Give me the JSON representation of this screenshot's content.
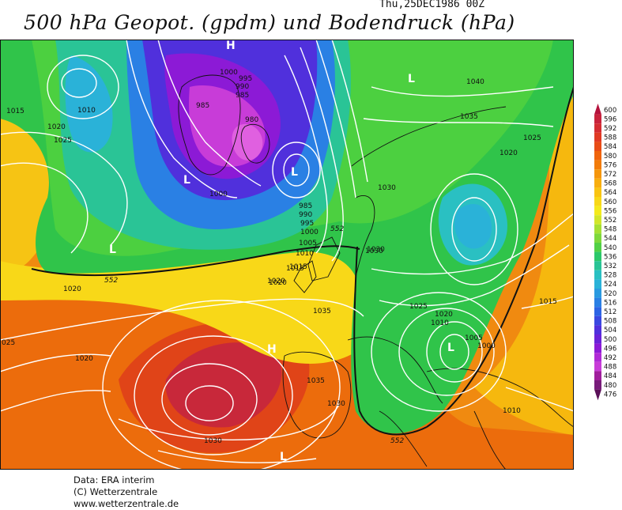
{
  "title": "500 hPa Geopot. (gpdm) und Bodendruck (hPa)",
  "datestamp": "Thu,25DEC1986 00Z",
  "footer": {
    "line1": "Data: ERA interim",
    "line2": "(C) Wetterzentrale",
    "line3": "www.wetterzentrale.de"
  },
  "scale": {
    "levels": [
      "600",
      "596",
      "592",
      "588",
      "584",
      "580",
      "576",
      "572",
      "568",
      "564",
      "560",
      "556",
      "552",
      "548",
      "544",
      "540",
      "536",
      "532",
      "528",
      "524",
      "520",
      "516",
      "512",
      "508",
      "504",
      "500",
      "496",
      "492",
      "488",
      "484",
      "480",
      "476"
    ],
    "colors": [
      "#b4123c",
      "#c8233c",
      "#d42c32",
      "#e03a24",
      "#e84c16",
      "#f0640c",
      "#f27c0a",
      "#f5960c",
      "#f8ae0f",
      "#f9c412",
      "#f8d818",
      "#f4ea1c",
      "#d2e62a",
      "#a6e034",
      "#7ed83c",
      "#52d046",
      "#2cc86a",
      "#2ac496",
      "#2ac0c2",
      "#2ab2d8",
      "#2a9ae0",
      "#2a80e4",
      "#2c64e4",
      "#3a48e0",
      "#5030dc",
      "#6a22d8",
      "#8c1ad6",
      "#b02ad6",
      "#c83cd8",
      "#a01e9c",
      "#781c7a",
      "#5a1058"
    ]
  },
  "map_labels": {
    "highs": [
      "H",
      "H"
    ],
    "lows": [
      "L",
      "L",
      "L",
      "L",
      "L",
      "L"
    ],
    "isobars": [
      "1000",
      "995",
      "990",
      "985",
      "980",
      "985",
      "1000",
      "1010",
      "1015",
      "1020",
      "1025",
      "1015",
      "1020",
      "985",
      "990",
      "995",
      "1000",
      "1005",
      "1010",
      "1015",
      "1020",
      "1020",
      "1035",
      "1020",
      "025",
      "1035",
      "1030",
      "1030",
      "1030",
      "1040",
      "1035",
      "1020",
      "1025",
      "1030",
      "1030",
      "1025",
      "1020",
      "1010",
      "1005",
      "1000",
      "1015",
      "1010"
    ],
    "height_contours": [
      "552",
      "552",
      "552"
    ]
  }
}
